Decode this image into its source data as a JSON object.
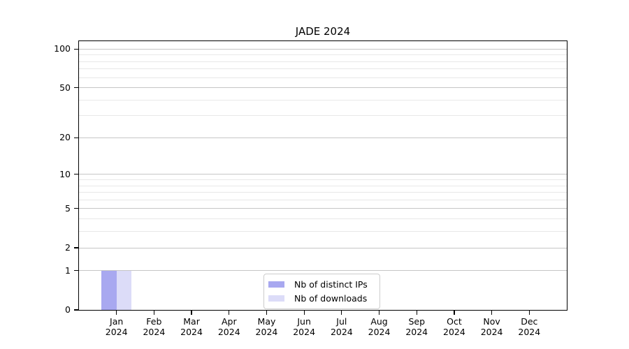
{
  "chart_data": {
    "type": "bar",
    "title": "JADE 2024",
    "xlabel": "",
    "ylabel": "",
    "categories": [
      "Jan 2024",
      "Feb 2024",
      "Mar 2024",
      "Apr 2024",
      "May 2024",
      "Jun 2024",
      "Jul 2024",
      "Aug 2024",
      "Sep 2024",
      "Oct 2024",
      "Nov 2024",
      "Dec 2024"
    ],
    "series": [
      {
        "name": "Nb of distinct IPs",
        "color": "#a8a8f0",
        "values": [
          1,
          0,
          0,
          0,
          0,
          0,
          0,
          0,
          0,
          0,
          0,
          0
        ]
      },
      {
        "name": "Nb of downloads",
        "color": "#dcdcf8",
        "values": [
          1,
          0,
          0,
          0,
          0,
          0,
          0,
          0,
          0,
          0,
          0,
          0
        ]
      }
    ],
    "y_scale": "log1p",
    "ylim": [
      0,
      115
    ],
    "y_major_ticks": [
      0,
      1,
      2,
      5,
      10,
      20,
      50,
      100
    ],
    "y_minor_gridlines": [
      3,
      4,
      6,
      7,
      8,
      9,
      30,
      40,
      60,
      70,
      80,
      90
    ],
    "grid": true,
    "legend_position": "lower center",
    "colors": {
      "grid_major": "#c6c6c6",
      "grid_minor": "#e8e8e8",
      "axis": "#000000",
      "legend_border": "#cccccc",
      "background": "#ffffff"
    }
  }
}
